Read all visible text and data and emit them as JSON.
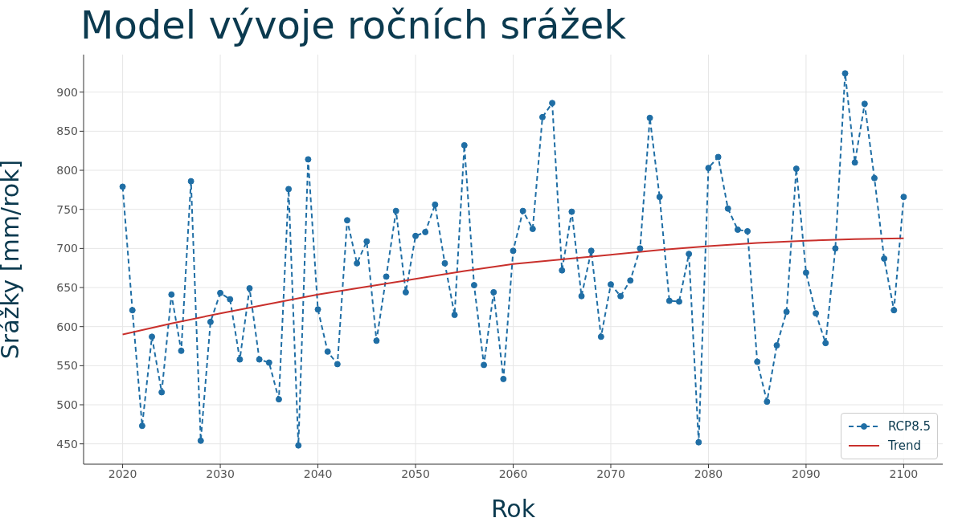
{
  "chart_data": {
    "type": "line",
    "title": "Model vývoje ročních srážek",
    "xlabel": "Rok",
    "ylabel": "Srážky [mm/rok]",
    "series": [
      {
        "name": "RCP8.5",
        "color": "#1f6ea5",
        "line_style": "dashed",
        "marker": "circle",
        "x": [
          2020,
          2021,
          2022,
          2023,
          2024,
          2025,
          2026,
          2027,
          2028,
          2029,
          2030,
          2031,
          2032,
          2033,
          2034,
          2035,
          2036,
          2037,
          2038,
          2039,
          2040,
          2041,
          2042,
          2043,
          2044,
          2045,
          2046,
          2047,
          2048,
          2049,
          2050,
          2051,
          2052,
          2053,
          2054,
          2055,
          2056,
          2057,
          2058,
          2059,
          2060,
          2061,
          2062,
          2063,
          2064,
          2065,
          2066,
          2067,
          2068,
          2069,
          2070,
          2071,
          2072,
          2073,
          2074,
          2075,
          2076,
          2077,
          2078,
          2079,
          2080,
          2081,
          2082,
          2083,
          2084,
          2085,
          2086,
          2087,
          2088,
          2089,
          2090,
          2091,
          2092,
          2093,
          2094,
          2095,
          2096,
          2097,
          2098,
          2099,
          2100
        ],
        "values": [
          779,
          621,
          473,
          587,
          516,
          641,
          569,
          786,
          454,
          606,
          643,
          635,
          558,
          649,
          558,
          554,
          507,
          776,
          448,
          814,
          622,
          568,
          552,
          736,
          681,
          709,
          582,
          664,
          748,
          644,
          716,
          721,
          756,
          681,
          615,
          832,
          653,
          551,
          644,
          533,
          697,
          748,
          725,
          868,
          886,
          672,
          747,
          639,
          697,
          587,
          654,
          639,
          659,
          700,
          867,
          766,
          633,
          632,
          693,
          452,
          803,
          817,
          751,
          724,
          722,
          555,
          504,
          576,
          619,
          802,
          669,
          617,
          579,
          700,
          924,
          810,
          885,
          790,
          687,
          621,
          766
        ]
      },
      {
        "name": "Trend",
        "color": "#c9302c",
        "x": [
          2020,
          2025,
          2030,
          2035,
          2040,
          2045,
          2050,
          2055,
          2060,
          2065,
          2070,
          2075,
          2080,
          2085,
          2090,
          2095,
          2100
        ],
        "values": [
          590,
          604,
          617,
          629,
          641,
          651,
          661,
          671,
          680,
          686,
          692,
          698,
          703,
          707,
          710,
          712,
          713
        ]
      }
    ],
    "xlim": [
      2016,
      2104
    ],
    "xticks": [
      2020,
      2030,
      2040,
      2050,
      2060,
      2070,
      2080,
      2090,
      2100
    ],
    "ylim": [
      424,
      948
    ],
    "yticks": [
      450,
      500,
      550,
      600,
      650,
      700,
      750,
      800,
      850,
      900
    ],
    "grid": true,
    "legend": "bottom right"
  }
}
